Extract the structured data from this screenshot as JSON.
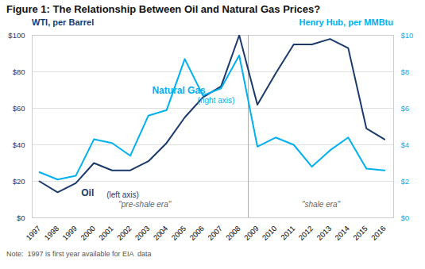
{
  "chart_data": {
    "type": "line",
    "title": "Figure 1:  The Relationship Between Oil and Natural Gas Prices?",
    "note": "Note:  1997 is first year available for EIA  data",
    "ylabel": "WTI, per Barrel",
    "y2label": "Henry Hub, per MMBtu",
    "x": [
      1997,
      1998,
      1999,
      2000,
      2001,
      2002,
      2003,
      2004,
      2005,
      2006,
      2007,
      2008,
      2009,
      2010,
      2011,
      2012,
      2013,
      2014,
      2015,
      2016
    ],
    "xlim": [
      1996.6,
      2016.5
    ],
    "xticks": [
      1997,
      1998,
      1999,
      2000,
      2001,
      2002,
      2003,
      2004,
      2005,
      2006,
      2007,
      2008,
      2009,
      2010,
      2011,
      2012,
      2013,
      2014,
      2015,
      2016
    ],
    "ylim": [
      0,
      100
    ],
    "yticks": [
      {
        "value": 0,
        "label": "$0"
      },
      {
        "value": 20,
        "label": "$20"
      },
      {
        "value": 40,
        "label": "$40"
      },
      {
        "value": 60,
        "label": "$60"
      },
      {
        "value": 80,
        "label": "$80"
      },
      {
        "value": 100,
        "label": "$100"
      }
    ],
    "y2lim": [
      0,
      10
    ],
    "y2ticks": [
      {
        "value": 0,
        "label": "$0"
      },
      {
        "value": 2,
        "label": "$2"
      },
      {
        "value": 4,
        "label": "$4"
      },
      {
        "value": 6,
        "label": "$6"
      },
      {
        "value": 8,
        "label": "$8"
      },
      {
        "value": 10,
        "label": "$10"
      }
    ],
    "grid": true,
    "series": [
      {
        "name": "Oil",
        "color": "#1a3a6b",
        "values": [
          20,
          14,
          19,
          30,
          26,
          26,
          31,
          41,
          55,
          66,
          72,
          100,
          62,
          79,
          95,
          95,
          98,
          93,
          49,
          43
        ]
      },
      {
        "name": "Natural Gas",
        "color": "#00b0f0",
        "axis": "y2",
        "values": [
          2.5,
          2.1,
          2.3,
          4.3,
          4.1,
          3.4,
          5.6,
          5.9,
          8.7,
          6.7,
          7.1,
          8.9,
          3.9,
          4.4,
          4.0,
          2.8,
          3.7,
          4.4,
          2.7,
          2.6
        ]
      }
    ],
    "divider": {
      "x": 2008.5,
      "color": "#aaaaaa"
    },
    "annotations": [
      {
        "text": "\"pre-shale era\"",
        "x": 2002.8,
        "y": 6
      },
      {
        "text": "\"shale era\"",
        "x": 2012.5,
        "y": 6
      },
      {
        "text": "Oil",
        "x": 1999.3,
        "y": 12,
        "series": "Oil"
      },
      {
        "text": "(left axis)",
        "x": 2000.7,
        "y": 11,
        "series": "Oil"
      },
      {
        "text": "Natural Gas",
        "x": 2003.2,
        "y": 68,
        "series": "Natural Gas"
      },
      {
        "text": "(right axis)",
        "x": 2005.7,
        "y": 63,
        "series": "Natural Gas"
      }
    ]
  }
}
